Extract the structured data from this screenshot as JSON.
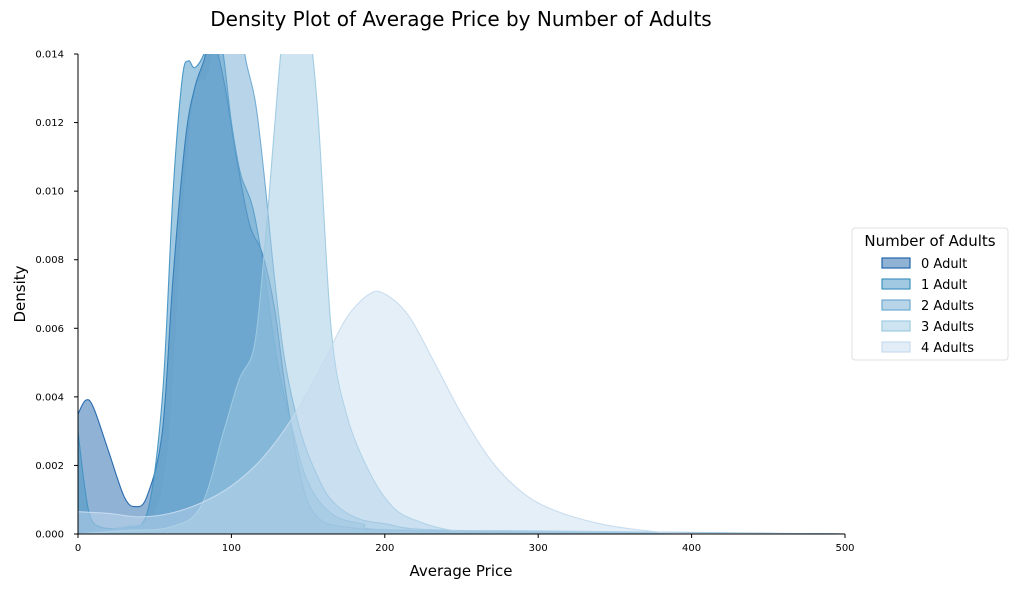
{
  "chart_data": {
    "type": "area",
    "subtype": "kde-density",
    "title": "Density Plot of Average Price by Number of Adults",
    "xlabel": "Average Price",
    "ylabel": "Density",
    "xlim": [
      0,
      500
    ],
    "ylim": [
      0,
      0.014
    ],
    "xticks": [
      "0",
      "100",
      "200",
      "300",
      "400",
      "500"
    ],
    "yticks": [
      "0.000",
      "0.002",
      "0.004",
      "0.006",
      "0.008",
      "0.010",
      "0.012",
      "0.014"
    ],
    "grid": false,
    "legend": {
      "title": "Number of Adults",
      "placement": "right"
    },
    "series": [
      {
        "name": "0 Adult",
        "color": "#2166ac",
        "points": [
          [
            0,
            0.0035
          ],
          [
            5,
            0.0039
          ],
          [
            10,
            0.0037
          ],
          [
            20,
            0.0024
          ],
          [
            30,
            0.0011
          ],
          [
            37,
            0.0008
          ],
          [
            45,
            0.0011
          ],
          [
            55,
            0.003
          ],
          [
            62,
            0.0075
          ],
          [
            70,
            0.0115
          ],
          [
            76,
            0.013
          ],
          [
            82,
            0.0138
          ],
          [
            86,
            0.0145
          ],
          [
            90,
            0.0142
          ],
          [
            96,
            0.013
          ],
          [
            104,
            0.0108
          ],
          [
            112,
            0.009
          ],
          [
            120,
            0.0082
          ],
          [
            128,
            0.0066
          ],
          [
            136,
            0.004
          ],
          [
            146,
            0.0015
          ],
          [
            156,
            0.0005
          ],
          [
            175,
            0.0002
          ],
          [
            230,
            0.0001
          ],
          [
            500,
            0.0
          ]
        ]
      },
      {
        "name": "1 Adult",
        "color": "#4393c3",
        "points": [
          [
            0,
            0.003
          ],
          [
            4,
            0.0015
          ],
          [
            8,
            0.0005
          ],
          [
            15,
            0.0002
          ],
          [
            30,
            0.0002
          ],
          [
            45,
            0.0006
          ],
          [
            55,
            0.004
          ],
          [
            62,
            0.01
          ],
          [
            68,
            0.0133
          ],
          [
            72,
            0.0138
          ],
          [
            76,
            0.0136
          ],
          [
            82,
            0.014
          ],
          [
            88,
            0.015
          ],
          [
            94,
            0.0142
          ],
          [
            100,
            0.012
          ],
          [
            106,
            0.0105
          ],
          [
            114,
            0.0095
          ],
          [
            122,
            0.0075
          ],
          [
            130,
            0.005
          ],
          [
            140,
            0.003
          ],
          [
            150,
            0.0015
          ],
          [
            165,
            0.0006
          ],
          [
            185,
            0.0003
          ],
          [
            220,
            0.0001
          ],
          [
            500,
            0.0
          ]
        ]
      },
      {
        "name": "2 Adults",
        "color": "#6fa9d2",
        "points": [
          [
            0,
            0.0
          ],
          [
            10,
            0.0001
          ],
          [
            30,
            0.0002
          ],
          [
            50,
            0.0006
          ],
          [
            60,
            0.003
          ],
          [
            68,
            0.009
          ],
          [
            76,
            0.0128
          ],
          [
            84,
            0.0133
          ],
          [
            92,
            0.0145
          ],
          [
            100,
            0.0145
          ],
          [
            104,
            0.015
          ],
          [
            110,
            0.0137
          ],
          [
            116,
            0.0125
          ],
          [
            122,
            0.0102
          ],
          [
            128,
            0.0075
          ],
          [
            135,
            0.005
          ],
          [
            145,
            0.003
          ],
          [
            155,
            0.0018
          ],
          [
            165,
            0.001
          ],
          [
            180,
            0.0005
          ],
          [
            200,
            0.0003
          ],
          [
            250,
            0.0001
          ],
          [
            500,
            0.0
          ]
        ]
      },
      {
        "name": "3 Adults",
        "color": "#9ecae1",
        "points": [
          [
            0,
            0.0
          ],
          [
            30,
            0.0001
          ],
          [
            60,
            0.0002
          ],
          [
            80,
            0.0008
          ],
          [
            95,
            0.003
          ],
          [
            105,
            0.0045
          ],
          [
            115,
            0.0055
          ],
          [
            122,
            0.0085
          ],
          [
            128,
            0.0118
          ],
          [
            134,
            0.0148
          ],
          [
            140,
            0.0158
          ],
          [
            148,
            0.0155
          ],
          [
            156,
            0.0125
          ],
          [
            165,
            0.006
          ],
          [
            175,
            0.0035
          ],
          [
            190,
            0.0018
          ],
          [
            205,
            0.0008
          ],
          [
            220,
            0.0004
          ],
          [
            245,
            0.0001
          ],
          [
            280,
            0.0001
          ],
          [
            500,
            0.0
          ]
        ]
      },
      {
        "name": "4 Adults",
        "color": "#c6dbef",
        "points": [
          [
            0,
            0.00065
          ],
          [
            20,
            0.0006
          ],
          [
            40,
            0.0005
          ],
          [
            60,
            0.0006
          ],
          [
            80,
            0.0009
          ],
          [
            100,
            0.0014
          ],
          [
            120,
            0.0022
          ],
          [
            140,
            0.0034
          ],
          [
            160,
            0.005
          ],
          [
            175,
            0.0063
          ],
          [
            190,
            0.007
          ],
          [
            200,
            0.007
          ],
          [
            215,
            0.0064
          ],
          [
            230,
            0.0052
          ],
          [
            250,
            0.0035
          ],
          [
            270,
            0.0021
          ],
          [
            290,
            0.0012
          ],
          [
            310,
            0.0007
          ],
          [
            340,
            0.0003
          ],
          [
            370,
            0.0001
          ],
          [
            400,
            2e-05
          ],
          [
            500,
            0.0
          ]
        ]
      }
    ]
  }
}
